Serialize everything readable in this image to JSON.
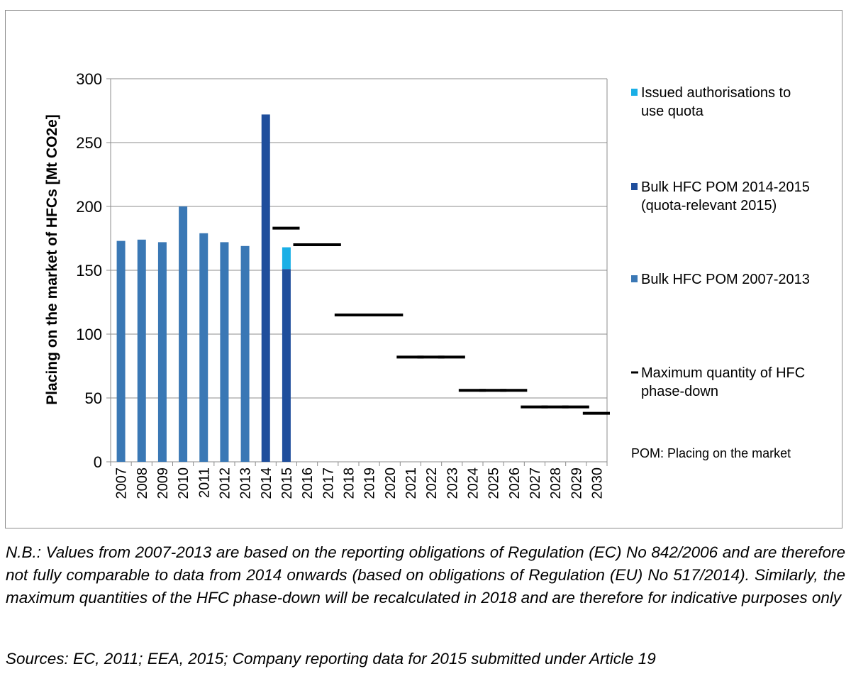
{
  "chart_data": {
    "type": "bar",
    "ylabel": "Placing on the market of HFCs [Mt CO2e]",
    "ylim": [
      0,
      300
    ],
    "yticks": [
      0,
      50,
      100,
      150,
      200,
      250,
      300
    ],
    "grid": true,
    "legend_position": "right",
    "categories": [
      "2007",
      "2008",
      "2009",
      "2010",
      "2011",
      "2012",
      "2013",
      "2014",
      "2015",
      "2016",
      "2017",
      "2018",
      "2019",
      "2020",
      "2021",
      "2022",
      "2023",
      "2024",
      "2025",
      "2026",
      "2027",
      "2028",
      "2029",
      "2030"
    ],
    "series": [
      {
        "name": "Issued authorisations to use quota",
        "color": "#1aafe6",
        "kind": "bar-stacked",
        "values": [
          null,
          null,
          null,
          null,
          null,
          null,
          null,
          null,
          17,
          null,
          null,
          null,
          null,
          null,
          null,
          null,
          null,
          null,
          null,
          null,
          null,
          null,
          null,
          null
        ]
      },
      {
        "name": "Bulk HFC POM 2014-2015 (quota-relevant 2015)",
        "color": "#1f4e9c",
        "kind": "bar",
        "values": [
          null,
          null,
          null,
          null,
          null,
          null,
          null,
          272,
          151,
          null,
          null,
          null,
          null,
          null,
          null,
          null,
          null,
          null,
          null,
          null,
          null,
          null,
          null,
          null
        ]
      },
      {
        "name": "Bulk HFC POM 2007-2013",
        "color": "#3a78b5",
        "kind": "bar",
        "values": [
          173,
          174,
          172,
          200,
          179,
          172,
          169,
          null,
          null,
          null,
          null,
          null,
          null,
          null,
          null,
          null,
          null,
          null,
          null,
          null,
          null,
          null,
          null,
          null
        ]
      },
      {
        "name": "Maximum quantity of HFC phase-down",
        "color": "#000000",
        "kind": "dash",
        "values": [
          null,
          null,
          null,
          null,
          null,
          null,
          null,
          null,
          183,
          170,
          170,
          115,
          115,
          115,
          82,
          82,
          82,
          56,
          56,
          56,
          43,
          43,
          43,
          38
        ]
      }
    ],
    "legend_order": [
      0,
      1,
      2,
      3
    ],
    "annotation": "POM: Placing on the market"
  },
  "notes": {
    "nb": "N.B.: Values from 2007-2013 are based on the reporting obligations of Regulation (EC) No 842/2006 and are therefore not fully comparable to data from 2014 onwards (based on obligations of Regulation (EU) No 517/2014). Similarly, the maximum quantities of the HFC phase-down will be recalculated in 2018 and are therefore for indicative purposes only",
    "sources": "Sources: EC, 2011; EEA, 2015; Company reporting data for 2015 submitted under Article 19"
  }
}
